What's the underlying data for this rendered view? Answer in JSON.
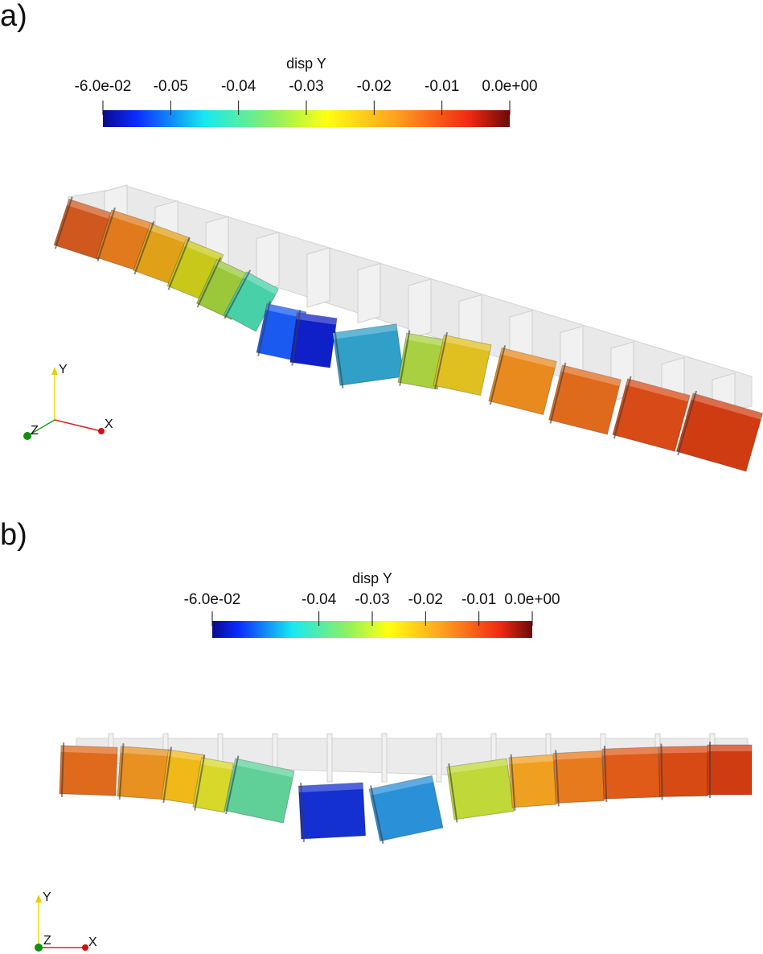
{
  "panels": [
    {
      "label": "a)",
      "colorbar": {
        "title": "disp Y",
        "range": [
          -0.06,
          0
        ],
        "ticks": [
          {
            "value": -0.06,
            "label": "-6.0e-02"
          },
          -0.05,
          -0.04,
          -0.03,
          -0.02,
          -0.01,
          {
            "value": 0,
            "label": "0.0e+00"
          }
        ]
      },
      "axes": {
        "x": "X",
        "y": "Y",
        "z": "Z"
      }
    },
    {
      "label": "b)",
      "colorbar": {
        "title": "disp Y",
        "range": [
          -0.06,
          0
        ],
        "ticks": [
          {
            "value": -0.06,
            "label": "-6.0e-02"
          },
          -0.04,
          -0.03,
          -0.02,
          -0.01,
          {
            "value": 0,
            "label": "0.0e+00"
          }
        ]
      },
      "axes": {
        "x": "X",
        "y": "Y",
        "z": "Z"
      }
    }
  ]
}
